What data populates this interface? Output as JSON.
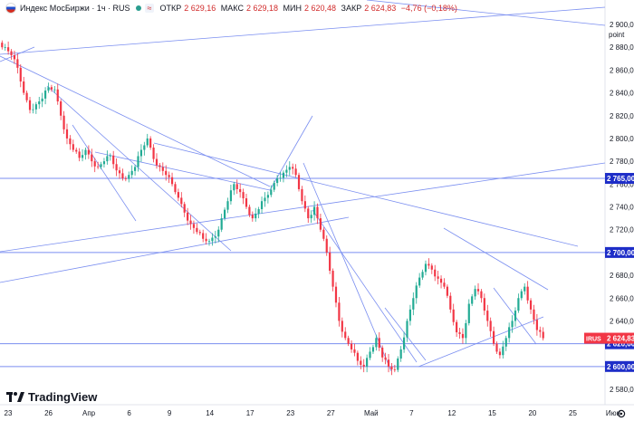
{
  "header": {
    "symbol": "Индекс МосБиржи · 1ч · RUS",
    "badge": "≈",
    "open_label": "ОТКР",
    "open_value": "2 629,16",
    "high_label": "МАКС",
    "high_value": "2 629,18",
    "low_label": "МИН",
    "low_value": "2 620,48",
    "close_label": "ЗАКР",
    "close_value": "2 624,83",
    "change": "−4,76 (−0,18%)"
  },
  "price_axis": {
    "unit": "point",
    "ticks": [
      "2 900,00",
      "2 880,00",
      "2 860,00",
      "2 840,00",
      "2 820,00",
      "2 800,00",
      "2 780,00",
      "2 760,00",
      "2 740,00",
      "2 720,00",
      "2 700,00",
      "2 680,00",
      "2 660,00",
      "2 640,00",
      "2 620,00",
      "2 600,00",
      "2 580,00"
    ],
    "highlighted": [
      {
        "label": "2 765,00",
        "value": 2765
      },
      {
        "label": "2 700,00",
        "value": 2700
      },
      {
        "label": "2 620,00",
        "value": 2620
      },
      {
        "label": "2 600,00",
        "value": 2600
      }
    ],
    "current": {
      "tag": "IRUS",
      "label": "2 624,83",
      "value": 2624.83
    }
  },
  "time_axis": {
    "ticks": [
      "23",
      "26",
      "Апр",
      "6",
      "9",
      "14",
      "17",
      "23",
      "27",
      "Май",
      "7",
      "12",
      "15",
      "20",
      "25",
      "Июн"
    ]
  },
  "brand": "TradingView",
  "colors": {
    "up": "#22ab94",
    "down": "#f23645",
    "line": "#7a8ef0",
    "price_tag": "#f23645",
    "level_tag": "#1e2ec8"
  },
  "chart_data": {
    "type": "candlestick",
    "title": "Индекс МосБиржи",
    "interval": "1ч",
    "y_unit": "point",
    "ylim": [
      2570,
      2910
    ],
    "horizontal_levels": [
      2765,
      2700,
      2620,
      2600
    ],
    "close_path": [
      2880,
      2873,
      2862,
      2840,
      2825,
      2830,
      2835,
      2845,
      2843,
      2820,
      2800,
      2790,
      2783,
      2790,
      2780,
      2775,
      2780,
      2785,
      2772,
      2765,
      2768,
      2775,
      2790,
      2800,
      2782,
      2775,
      2768,
      2760,
      2748,
      2735,
      2725,
      2718,
      2712,
      2710,
      2714,
      2730,
      2745,
      2760,
      2753,
      2740,
      2730,
      2738,
      2748,
      2755,
      2765,
      2770,
      2775,
      2768,
      2745,
      2730,
      2740,
      2720,
      2700,
      2670,
      2640,
      2625,
      2615,
      2605,
      2600,
      2613,
      2625,
      2608,
      2600,
      2597,
      2615,
      2640,
      2660,
      2678,
      2690,
      2685,
      2677,
      2670,
      2650,
      2630,
      2625,
      2655,
      2668,
      2660,
      2640,
      2620,
      2610,
      2625,
      2640,
      2660,
      2670,
      2650,
      2632,
      2624.83
    ]
  }
}
